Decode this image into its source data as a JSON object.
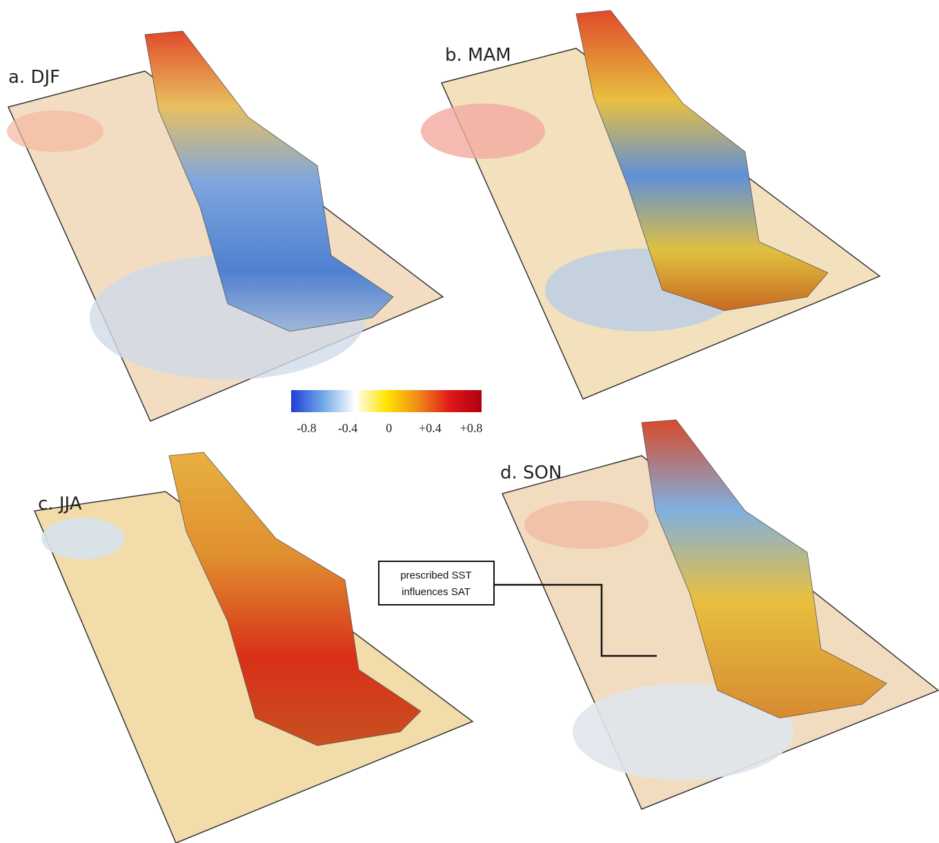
{
  "panels": [
    {
      "label": "a. DJF"
    },
    {
      "label": "b. MAM"
    },
    {
      "label": "c. JJA"
    },
    {
      "label": "d. SON"
    }
  ],
  "colorbar": {
    "lim": [
      -0.95,
      0.9
    ],
    "ticks": [
      {
        "value": -0.8,
        "label": "-0.8"
      },
      {
        "value": -0.4,
        "label": "-0.4"
      },
      0,
      {
        "value": 0.4,
        "label": "+0.4"
      },
      {
        "value": 0.8,
        "label": "+0.8"
      }
    ],
    "colors": [
      "#1f3fd6",
      "#6fa8e8",
      "#ffffff",
      "#ffe400",
      "#f08a1a",
      "#e01818",
      "#b00010"
    ]
  },
  "annotation": {
    "lines": [
      "prescribed SST",
      "influences SAT"
    ]
  }
}
